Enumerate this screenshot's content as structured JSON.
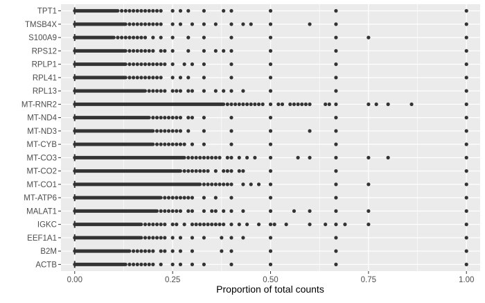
{
  "chart_data": {
    "type": "scatter",
    "title": "",
    "xlabel": "Proportion of total counts",
    "ylabel": "",
    "xlim": [
      -0.035,
      1.035
    ],
    "x_ticks": [
      0.0,
      0.25,
      0.5,
      0.75,
      1.0
    ],
    "x_tick_labels": [
      "0.00",
      "0.25",
      "0.50",
      "0.75",
      "1.00"
    ],
    "grid": true,
    "colors": {
      "panel": "#ebebeb",
      "grid": "#ffffff",
      "point": "#333333",
      "text": "#4d4d4d",
      "axis_title": "#000000"
    },
    "categories": [
      "ACTB",
      "B2M",
      "EEF1A1",
      "IGKC",
      "MALAT1",
      "MT-ATP6",
      "MT-CO1",
      "MT-CO2",
      "MT-CO3",
      "MT-CYB",
      "MT-ND3",
      "MT-ND4",
      "MT-RNR2",
      "RPL13",
      "RPL41",
      "RPLP1",
      "RPS12",
      "S100A9",
      "TMSB4X",
      "TPT1"
    ],
    "rows": [
      {
        "gene": "ACTB",
        "dense_max": 0.13,
        "outliers": [
          0.14,
          0.15,
          0.16,
          0.17,
          0.18,
          0.19,
          0.2,
          0.22,
          0.25,
          0.27,
          0.3,
          0.33,
          0.4,
          0.5,
          0.667,
          1.0
        ]
      },
      {
        "gene": "B2M",
        "dense_max": 0.14,
        "outliers": [
          0.15,
          0.16,
          0.17,
          0.18,
          0.19,
          0.2,
          0.22,
          0.23,
          0.25,
          0.27,
          0.3,
          0.375,
          0.4,
          0.5,
          0.667,
          1.0
        ]
      },
      {
        "gene": "EEF1A1",
        "dense_max": 0.17,
        "outliers": [
          0.18,
          0.19,
          0.2,
          0.21,
          0.22,
          0.23,
          0.25,
          0.27,
          0.3,
          0.33,
          0.375,
          0.4,
          0.43,
          0.5,
          0.667,
          1.0
        ]
      },
      {
        "gene": "IGKC",
        "dense_max": 0.17,
        "outliers": [
          0.18,
          0.19,
          0.2,
          0.21,
          0.22,
          0.23,
          0.25,
          0.26,
          0.28,
          0.3,
          0.31,
          0.32,
          0.33,
          0.34,
          0.35,
          0.36,
          0.37,
          0.38,
          0.4,
          0.42,
          0.44,
          0.47,
          0.5,
          0.51,
          0.54,
          0.6,
          0.64,
          0.667,
          0.69,
          0.75,
          1.0
        ]
      },
      {
        "gene": "MALAT1",
        "dense_max": 0.21,
        "outliers": [
          0.22,
          0.23,
          0.24,
          0.25,
          0.26,
          0.27,
          0.29,
          0.3,
          0.33,
          0.35,
          0.36,
          0.38,
          0.4,
          0.43,
          0.5,
          0.56,
          0.6,
          0.667,
          0.75,
          1.0
        ]
      },
      {
        "gene": "MT-ATP6",
        "dense_max": 0.22,
        "outliers": [
          0.23,
          0.24,
          0.25,
          0.26,
          0.27,
          0.28,
          0.29,
          0.3,
          0.33,
          0.36,
          0.4,
          0.5,
          0.667,
          1.0
        ]
      },
      {
        "gene": "MT-CO1",
        "dense_max": 0.32,
        "outliers": [
          0.33,
          0.34,
          0.35,
          0.36,
          0.37,
          0.38,
          0.39,
          0.4,
          0.43,
          0.45,
          0.47,
          0.5,
          0.667,
          0.75,
          1.0
        ]
      },
      {
        "gene": "MT-CO2",
        "dense_max": 0.27,
        "outliers": [
          0.28,
          0.29,
          0.3,
          0.31,
          0.32,
          0.33,
          0.34,
          0.36,
          0.38,
          0.39,
          0.4,
          0.42,
          0.43,
          0.5,
          0.667,
          1.0
        ]
      },
      {
        "gene": "MT-CO3",
        "dense_max": 0.28,
        "outliers": [
          0.29,
          0.3,
          0.31,
          0.32,
          0.33,
          0.34,
          0.35,
          0.36,
          0.37,
          0.39,
          0.4,
          0.42,
          0.44,
          0.46,
          0.5,
          0.57,
          0.6,
          0.667,
          0.75,
          0.8,
          1.0
        ]
      },
      {
        "gene": "MT-CYB",
        "dense_max": 0.2,
        "outliers": [
          0.21,
          0.22,
          0.23,
          0.24,
          0.25,
          0.26,
          0.27,
          0.28,
          0.3,
          0.33,
          0.4,
          0.5,
          0.667,
          1.0
        ]
      },
      {
        "gene": "MT-ND3",
        "dense_max": 0.2,
        "outliers": [
          0.21,
          0.22,
          0.23,
          0.24,
          0.25,
          0.26,
          0.27,
          0.29,
          0.33,
          0.4,
          0.5,
          0.6,
          0.667,
          1.0
        ]
      },
      {
        "gene": "MT-ND4",
        "dense_max": 0.19,
        "outliers": [
          0.2,
          0.21,
          0.22,
          0.23,
          0.24,
          0.25,
          0.26,
          0.27,
          0.29,
          0.3,
          0.33,
          0.4,
          0.5,
          0.667,
          1.0
        ]
      },
      {
        "gene": "MT-RNR2",
        "dense_max": 0.38,
        "outliers": [
          0.39,
          0.4,
          0.41,
          0.42,
          0.43,
          0.44,
          0.45,
          0.46,
          0.47,
          0.48,
          0.5,
          0.52,
          0.53,
          0.55,
          0.56,
          0.57,
          0.58,
          0.59,
          0.6,
          0.64,
          0.65,
          0.667,
          0.75,
          0.77,
          0.8,
          0.86,
          1.0
        ]
      },
      {
        "gene": "RPL13",
        "dense_max": 0.18,
        "outliers": [
          0.19,
          0.2,
          0.21,
          0.22,
          0.23,
          0.25,
          0.26,
          0.27,
          0.29,
          0.3,
          0.33,
          0.36,
          0.38,
          0.4,
          0.43,
          0.5,
          0.667,
          1.0
        ]
      },
      {
        "gene": "RPL41",
        "dense_max": 0.13,
        "outliers": [
          0.14,
          0.15,
          0.16,
          0.17,
          0.18,
          0.19,
          0.2,
          0.21,
          0.22,
          0.25,
          0.27,
          0.29,
          0.33,
          0.4,
          0.5,
          0.667,
          1.0
        ]
      },
      {
        "gene": "RPLP1",
        "dense_max": 0.13,
        "outliers": [
          0.14,
          0.15,
          0.16,
          0.17,
          0.18,
          0.19,
          0.2,
          0.21,
          0.22,
          0.23,
          0.25,
          0.28,
          0.3,
          0.33,
          0.4,
          0.5,
          0.667,
          1.0
        ]
      },
      {
        "gene": "RPS12",
        "dense_max": 0.13,
        "outliers": [
          0.14,
          0.15,
          0.16,
          0.17,
          0.18,
          0.19,
          0.2,
          0.22,
          0.23,
          0.25,
          0.29,
          0.33,
          0.36,
          0.38,
          0.4,
          0.5,
          0.667,
          1.0
        ]
      },
      {
        "gene": "S100A9",
        "dense_max": 0.1,
        "outliers": [
          0.11,
          0.12,
          0.13,
          0.14,
          0.15,
          0.16,
          0.17,
          0.18,
          0.2,
          0.22,
          0.25,
          0.29,
          0.33,
          0.4,
          0.5,
          0.667,
          0.75,
          1.0
        ]
      },
      {
        "gene": "TMSB4X",
        "dense_max": 0.13,
        "outliers": [
          0.14,
          0.15,
          0.16,
          0.17,
          0.18,
          0.19,
          0.2,
          0.21,
          0.22,
          0.25,
          0.27,
          0.3,
          0.33,
          0.36,
          0.4,
          0.43,
          0.45,
          0.5,
          0.6,
          0.667,
          1.0
        ]
      },
      {
        "gene": "TPT1",
        "dense_max": 0.11,
        "outliers": [
          0.12,
          0.13,
          0.14,
          0.15,
          0.16,
          0.17,
          0.18,
          0.19,
          0.2,
          0.21,
          0.22,
          0.25,
          0.27,
          0.29,
          0.33,
          0.38,
          0.4,
          0.5,
          0.667,
          1.0
        ]
      }
    ]
  }
}
